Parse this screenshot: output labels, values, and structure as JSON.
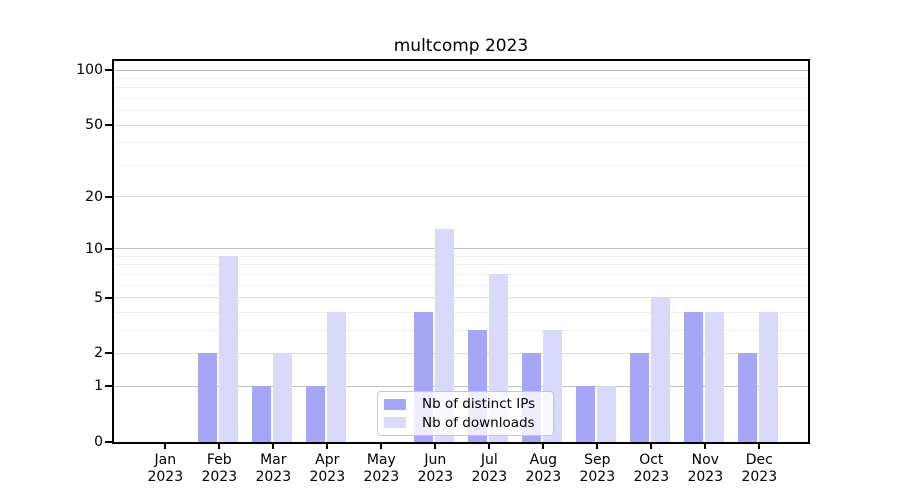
{
  "chart_data": {
    "type": "bar",
    "title": "multcomp 2023",
    "x_axis": {
      "categories": [
        "Jan",
        "Feb",
        "Mar",
        "Apr",
        "May",
        "Jun",
        "Jul",
        "Aug",
        "Sep",
        "Oct",
        "Nov",
        "Dec"
      ],
      "year_label": "2023"
    },
    "y_axis": {
      "scale": "log10(1+x)",
      "ticks": [
        0,
        1,
        2,
        5,
        10,
        20,
        50,
        100
      ],
      "strong_gridlines": [
        1,
        10,
        100
      ],
      "medium_gridlines": [
        2,
        5,
        20,
        50
      ],
      "minor_gridlines": [
        3,
        4,
        6,
        7,
        8,
        9,
        30,
        40,
        60,
        70,
        80,
        90
      ],
      "top_value": 100,
      "ylim": [
        0,
        100
      ]
    },
    "series": [
      {
        "name": "Nb of distinct IPs",
        "color": "#a6a6f7",
        "values": [
          0,
          2,
          1,
          1,
          0,
          4,
          3,
          2,
          1,
          2,
          4,
          2
        ]
      },
      {
        "name": "Nb of downloads",
        "color": "#d9d9fb",
        "values": [
          0,
          9,
          2,
          4,
          0,
          13,
          7,
          3,
          1,
          5,
          4,
          4
        ]
      }
    ],
    "legend_position": "bottom-center",
    "grid": true
  },
  "colors": {
    "background": "#ffffff",
    "axis": "#000000",
    "text": "#000000",
    "grid_strong": "#c0c0c0",
    "grid_medium": "#dcdcdc",
    "grid_minor": "#eeeeee",
    "legend_border": "#c8c8c8",
    "legend_background": "rgba(255,255,255,0.8)"
  }
}
